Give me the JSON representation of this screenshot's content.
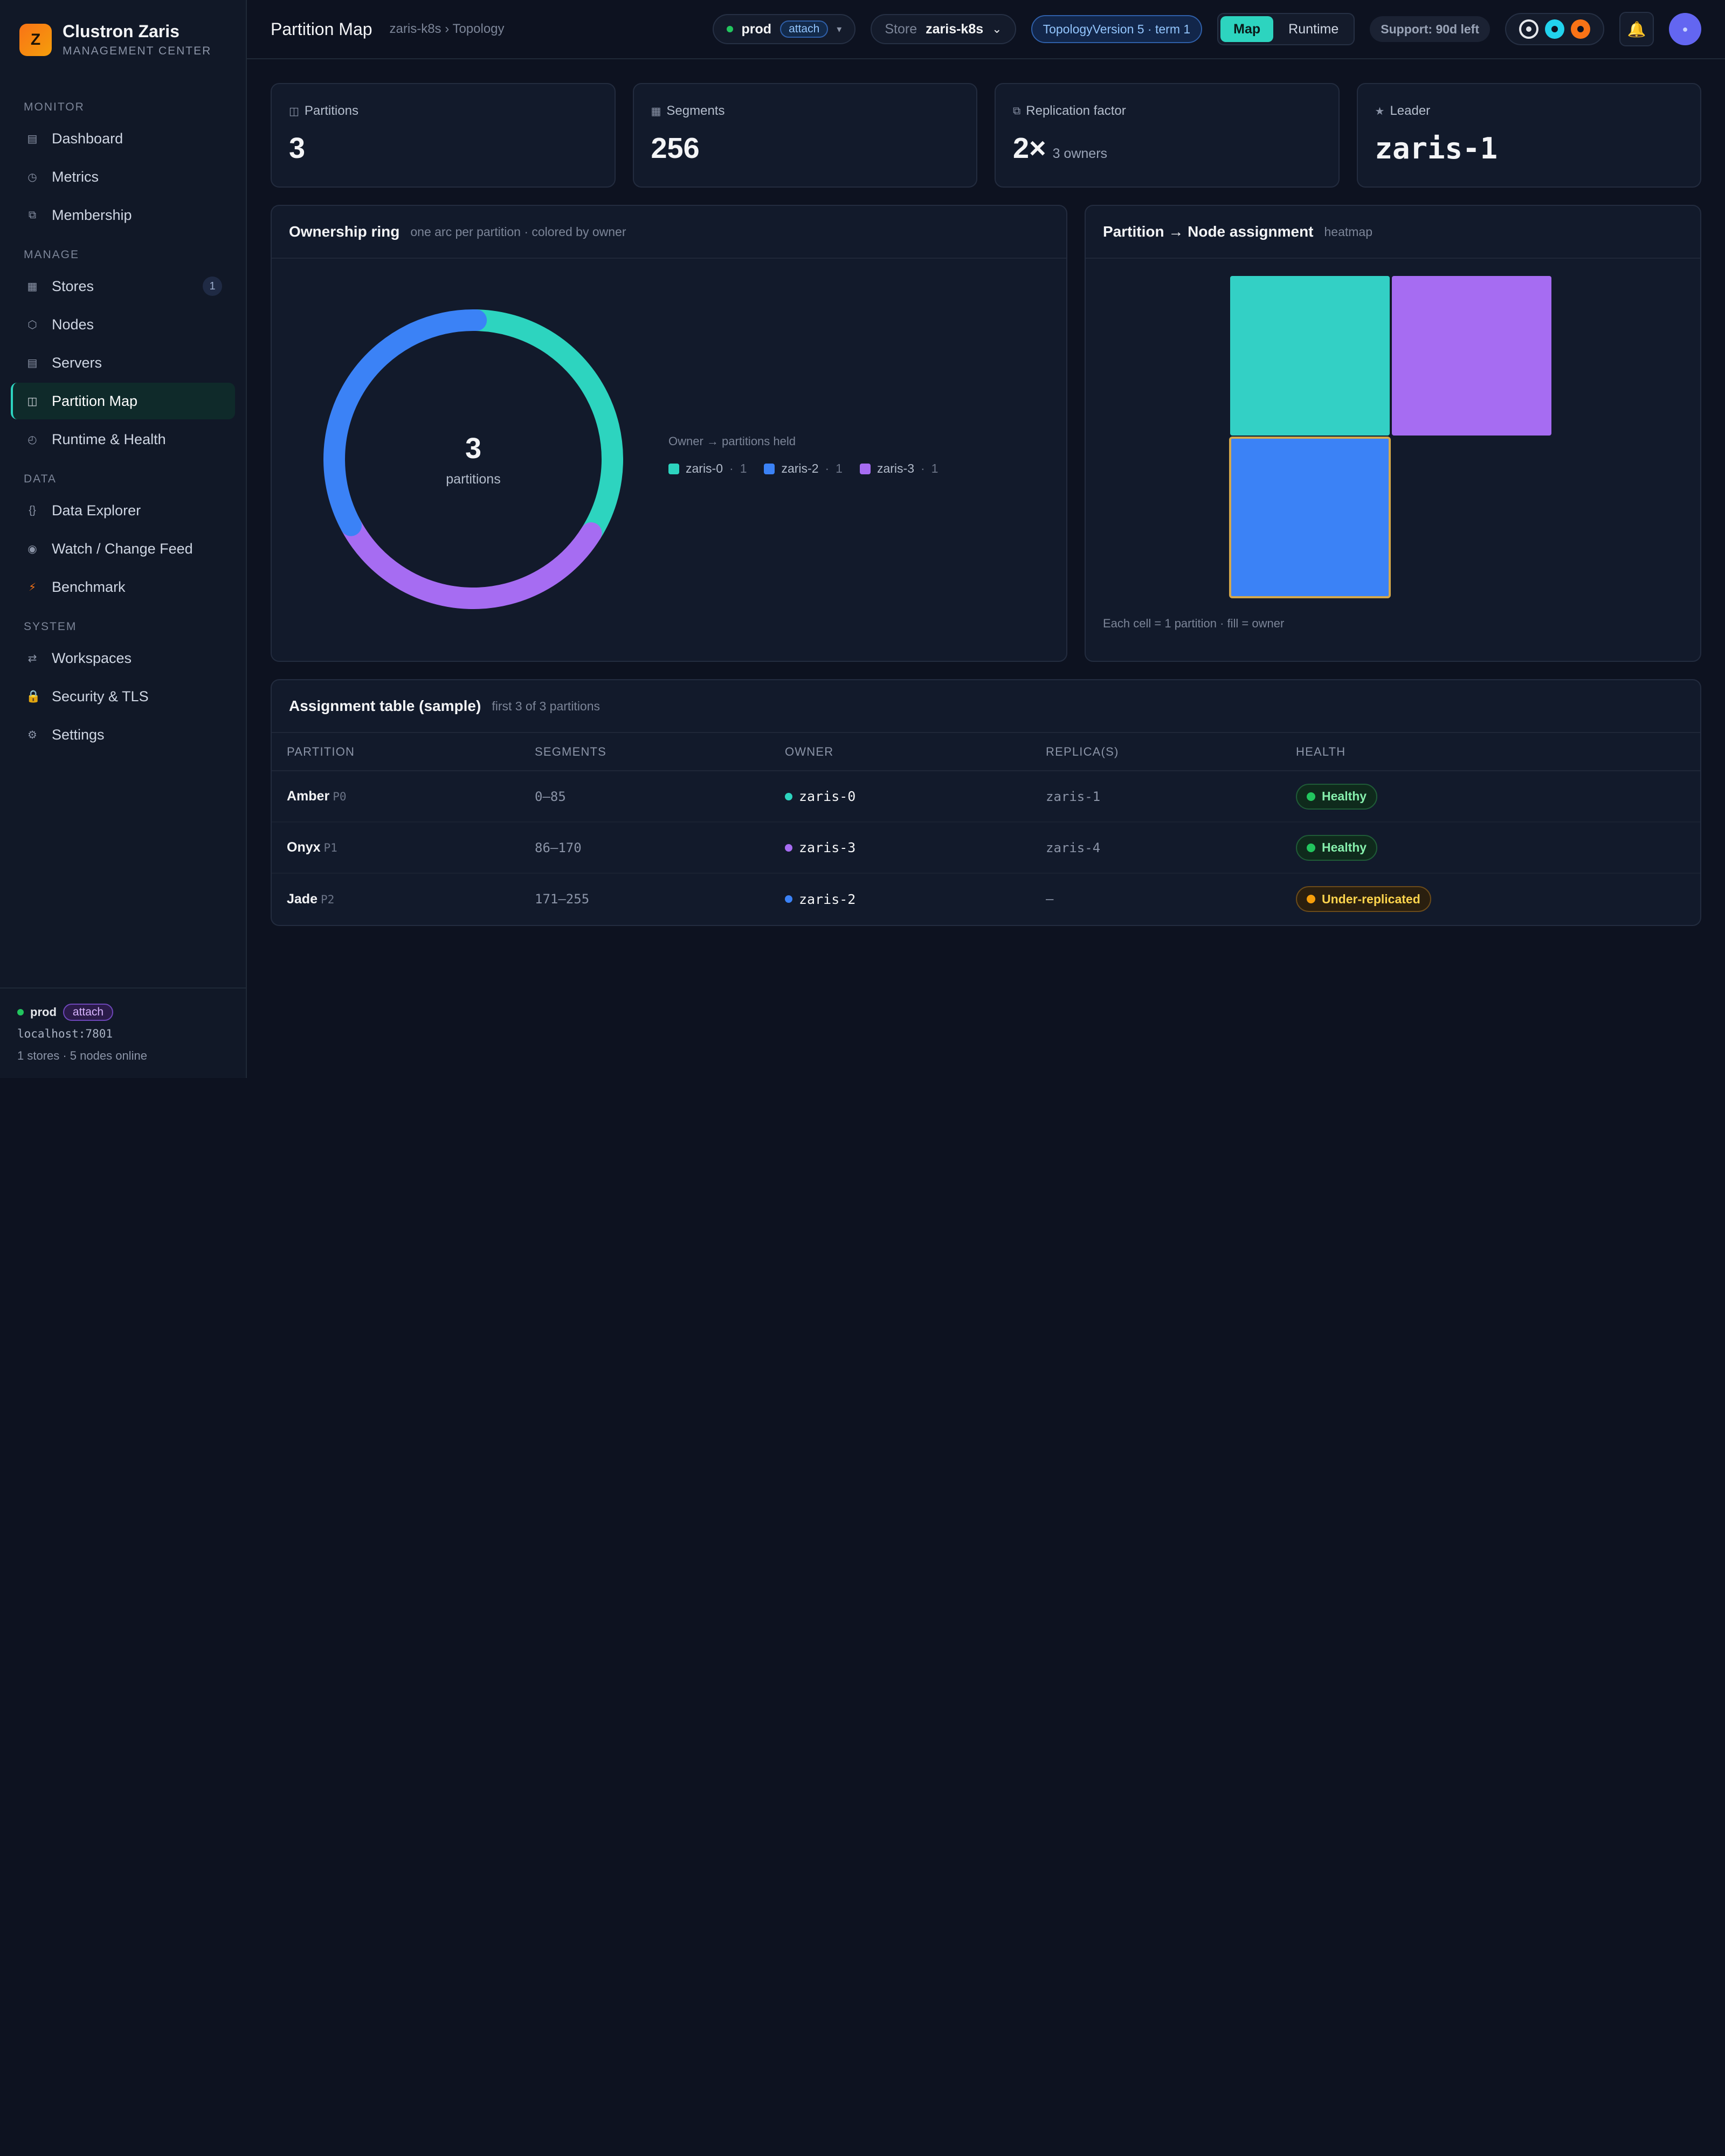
{
  "brand": {
    "logo_letter": "Z",
    "title": "Clustron Zaris",
    "subtitle": "MANAGEMENT CENTER"
  },
  "sidebar": {
    "sections": [
      {
        "label": "MONITOR",
        "items": [
          {
            "label": "Dashboard",
            "icon": "grid-icon",
            "glyph": "▤"
          },
          {
            "label": "Metrics",
            "icon": "gauge-icon",
            "glyph": "◷"
          },
          {
            "label": "Membership",
            "icon": "layers-icon",
            "glyph": "⧉"
          }
        ]
      },
      {
        "label": "MANAGE",
        "items": [
          {
            "label": "Stores",
            "icon": "store-icon",
            "glyph": "▦",
            "badge": "1"
          },
          {
            "label": "Nodes",
            "icon": "hexagon-icon",
            "glyph": "⬡"
          },
          {
            "label": "Servers",
            "icon": "server-icon",
            "glyph": "▤"
          },
          {
            "label": "Partition Map",
            "icon": "map-icon",
            "glyph": "◫",
            "active": true
          },
          {
            "label": "Runtime & Health",
            "icon": "clock-icon",
            "glyph": "◴"
          }
        ]
      },
      {
        "label": "DATA",
        "items": [
          {
            "label": "Data Explorer",
            "icon": "braces-icon",
            "glyph": "{}"
          },
          {
            "label": "Watch / Change Feed",
            "icon": "eye-icon",
            "glyph": "◉"
          },
          {
            "label": "Benchmark",
            "icon": "bolt-icon",
            "glyph": "⚡"
          }
        ]
      },
      {
        "label": "SYSTEM",
        "items": [
          {
            "label": "Workspaces",
            "icon": "swap-icon",
            "glyph": "⇄"
          },
          {
            "label": "Security & TLS",
            "icon": "lock-icon",
            "glyph": "🔒"
          },
          {
            "label": "Settings",
            "icon": "gear-icon",
            "glyph": "⚙"
          }
        ]
      }
    ],
    "footer": {
      "env": "prod",
      "attach": "attach",
      "host": "localhost:7801",
      "stats": "1 stores · 5 nodes online"
    }
  },
  "topbar": {
    "title": "Partition Map",
    "breadcrumb": "zaris-k8s › Topology",
    "env": "prod",
    "env_attach": "attach",
    "store_label": "Store",
    "store_value": "zaris-k8s",
    "topology": "TopologyVersion 5 · term 1",
    "view_tabs": [
      "Map",
      "Runtime"
    ],
    "support": "Support: 90d left"
  },
  "stats": [
    {
      "label": "Partitions",
      "icon": "columns-icon",
      "glyph": "◫",
      "value": "3",
      "sub": ""
    },
    {
      "label": "Segments",
      "icon": "grid-icon",
      "glyph": "▦",
      "value": "256",
      "sub": ""
    },
    {
      "label": "Replication factor",
      "icon": "copy-icon",
      "glyph": "⧉",
      "value": "2×",
      "sub": "3 owners"
    },
    {
      "label": "Leader",
      "icon": "star-icon",
      "glyph": "★",
      "value": "zaris-1",
      "sub": "",
      "mono": true
    }
  ],
  "ring": {
    "title": "Ownership ring",
    "subtitle": "one arc per partition · colored by owner",
    "center_value": "3",
    "center_label": "partitions",
    "legend_title": "Owner → partitions held",
    "legend": [
      {
        "name": "zaris-0",
        "count": "1",
        "color": "#2dd4bf"
      },
      {
        "name": "zaris-2",
        "count": "1",
        "color": "#3b82f6"
      },
      {
        "name": "zaris-3",
        "count": "1",
        "color": "#a66cf2"
      }
    ],
    "arcs": [
      {
        "partition": "Amber",
        "owner": "zaris-0",
        "color": "#2dd4bf",
        "segments": 86
      },
      {
        "partition": "Onyx",
        "owner": "zaris-3",
        "color": "#a66cf2",
        "segments": 85
      },
      {
        "partition": "Jade",
        "owner": "zaris-2",
        "color": "#3b82f6",
        "segments": 85
      }
    ]
  },
  "heatmap": {
    "title": "Partition → Node assignment",
    "subtitle": "heatmap",
    "footnote": "Each cell = 1 partition · fill = owner",
    "cells": [
      {
        "partition": "Amber",
        "color": "#33d0c5"
      },
      {
        "partition": "Onyx",
        "color": "#a66cf2"
      },
      {
        "partition": "Jade",
        "color": "#3b82f6",
        "selected": true
      }
    ]
  },
  "table": {
    "title": "Assignment table (sample)",
    "subtitle": "first 3 of 3 partitions",
    "columns": [
      "PARTITION",
      "SEGMENTS",
      "OWNER",
      "REPLICA(S)",
      "HEALTH"
    ],
    "rows": [
      {
        "name": "Amber",
        "id": "P0",
        "segments": "0–85",
        "owner": "zaris-0",
        "owner_color": "#2dd4bf",
        "replica": "zaris-1",
        "health": "Healthy",
        "status": "ok"
      },
      {
        "name": "Onyx",
        "id": "P1",
        "segments": "86–170",
        "owner": "zaris-3",
        "owner_color": "#a66cf2",
        "replica": "zaris-4",
        "health": "Healthy",
        "status": "ok"
      },
      {
        "name": "Jade",
        "id": "P2",
        "segments": "171–255",
        "owner": "zaris-2",
        "owner_color": "#3b82f6",
        "replica": "—",
        "health": "Under-replicated",
        "status": "warn"
      }
    ]
  }
}
